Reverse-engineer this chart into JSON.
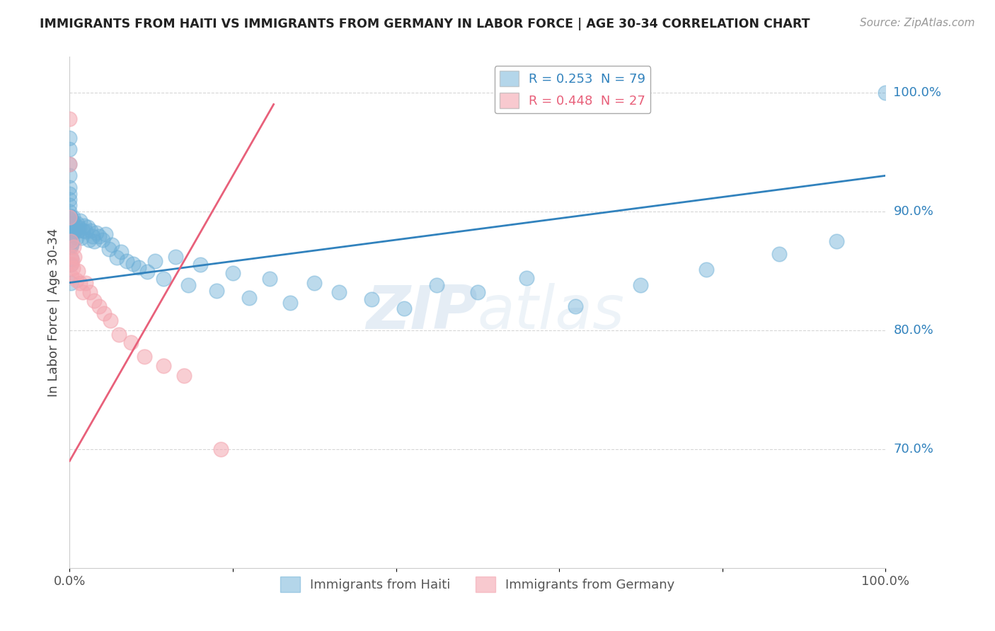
{
  "title": "IMMIGRANTS FROM HAITI VS IMMIGRANTS FROM GERMANY IN LABOR FORCE | AGE 30-34 CORRELATION CHART",
  "source": "Source: ZipAtlas.com",
  "ylabel": "In Labor Force | Age 30-34",
  "xlim": [
    0.0,
    1.0
  ],
  "ylim": [
    0.6,
    1.03
  ],
  "y_tick_right_vals": [
    0.7,
    0.8,
    0.9,
    1.0
  ],
  "y_tick_labels_right": [
    "70.0%",
    "80.0%",
    "90.0%",
    "100.0%"
  ],
  "x_tick_positions": [
    0.0,
    0.2,
    0.4,
    0.6,
    0.8,
    1.0
  ],
  "x_tick_labels": [
    "0.0%",
    "",
    "",
    "",
    "",
    "100.0%"
  ],
  "legend_r1": "R = 0.253  N = 79",
  "legend_r2": "R = 0.448  N = 27",
  "bottom_legend": [
    "Immigrants from Haiti",
    "Immigrants from Germany"
  ],
  "haiti_color": "#6baed6",
  "germany_color": "#f4a6b0",
  "haiti_line_color": "#3182bd",
  "germany_line_color": "#e8607a",
  "watermark_zip": "ZIP",
  "watermark_atlas": "atlas",
  "haiti_x": [
    0.0,
    0.0,
    0.0,
    0.0,
    0.0,
    0.0,
    0.0,
    0.0,
    0.0,
    0.0,
    0.0,
    0.0,
    0.0,
    0.0,
    0.0,
    0.001,
    0.001,
    0.001,
    0.001,
    0.001,
    0.002,
    0.002,
    0.002,
    0.003,
    0.003,
    0.004,
    0.004,
    0.005,
    0.006,
    0.007,
    0.008,
    0.009,
    0.01,
    0.012,
    0.013,
    0.014,
    0.016,
    0.018,
    0.02,
    0.022,
    0.024,
    0.026,
    0.028,
    0.03,
    0.033,
    0.036,
    0.04,
    0.044,
    0.048,
    0.052,
    0.058,
    0.063,
    0.07,
    0.078,
    0.085,
    0.095,
    0.105,
    0.115,
    0.13,
    0.145,
    0.16,
    0.18,
    0.2,
    0.22,
    0.245,
    0.27,
    0.3,
    0.33,
    0.37,
    0.41,
    0.45,
    0.5,
    0.56,
    0.62,
    0.7,
    0.78,
    0.87,
    0.94,
    1.0
  ],
  "haiti_y": [
    0.87,
    0.88,
    0.885,
    0.89,
    0.893,
    0.896,
    0.9,
    0.905,
    0.91,
    0.915,
    0.92,
    0.93,
    0.94,
    0.952,
    0.962,
    0.84,
    0.855,
    0.87,
    0.88,
    0.895,
    0.86,
    0.872,
    0.888,
    0.875,
    0.892,
    0.882,
    0.895,
    0.886,
    0.889,
    0.884,
    0.878,
    0.89,
    0.884,
    0.886,
    0.892,
    0.878,
    0.884,
    0.888,
    0.883,
    0.887,
    0.876,
    0.884,
    0.879,
    0.875,
    0.882,
    0.879,
    0.876,
    0.881,
    0.868,
    0.872,
    0.861,
    0.866,
    0.858,
    0.856,
    0.853,
    0.849,
    0.858,
    0.843,
    0.862,
    0.838,
    0.855,
    0.833,
    0.848,
    0.827,
    0.843,
    0.823,
    0.84,
    0.832,
    0.826,
    0.818,
    0.838,
    0.832,
    0.844,
    0.82,
    0.838,
    0.851,
    0.864,
    0.875,
    1.0
  ],
  "germany_x": [
    0.0,
    0.0,
    0.0,
    0.001,
    0.001,
    0.002,
    0.002,
    0.003,
    0.004,
    0.005,
    0.006,
    0.008,
    0.01,
    0.013,
    0.016,
    0.02,
    0.025,
    0.03,
    0.036,
    0.042,
    0.05,
    0.06,
    0.075,
    0.092,
    0.115,
    0.14,
    0.185
  ],
  "germany_y": [
    0.978,
    0.94,
    0.895,
    0.875,
    0.862,
    0.856,
    0.845,
    0.858,
    0.852,
    0.87,
    0.862,
    0.842,
    0.85,
    0.84,
    0.832,
    0.84,
    0.832,
    0.825,
    0.82,
    0.814,
    0.808,
    0.796,
    0.79,
    0.778,
    0.77,
    0.762,
    0.7
  ],
  "haiti_line_x": [
    0.0,
    1.0
  ],
  "haiti_line_y": [
    0.84,
    0.93
  ],
  "germany_line_x": [
    0.0,
    0.25
  ],
  "germany_line_y": [
    0.69,
    0.99
  ]
}
